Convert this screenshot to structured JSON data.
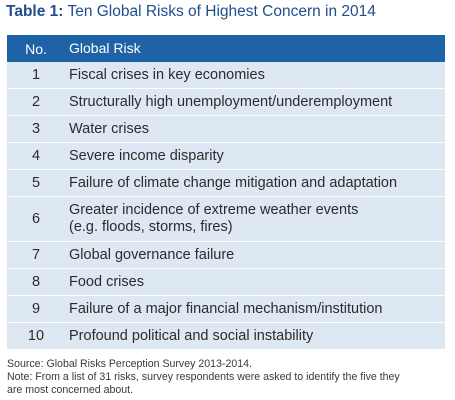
{
  "title": {
    "label": "Table 1:",
    "text": " Ten Global Risks of Highest Concern in 2014"
  },
  "table": {
    "headers": {
      "no": "No.",
      "risk": "Global Risk"
    },
    "rows": [
      {
        "no": "1",
        "risk": "Fiscal crises in key economies"
      },
      {
        "no": "2",
        "risk": "Structurally high unemployment/underemployment"
      },
      {
        "no": "3",
        "risk": "Water crises"
      },
      {
        "no": "4",
        "risk": "Severe income disparity"
      },
      {
        "no": "5",
        "risk": "Failure of climate change mitigation and adaptation"
      },
      {
        "no": "6",
        "risk_line1": "Greater incidence of extreme weather events",
        "risk_line2": "(e.g. floods, storms, fires)"
      },
      {
        "no": "7",
        "risk": "Global governance failure"
      },
      {
        "no": "8",
        "risk": "Food crises"
      },
      {
        "no": "9",
        "risk": "Failure of a major financial mechanism/institution"
      },
      {
        "no": "10",
        "risk": "Profound political and social instability"
      }
    ]
  },
  "footnote": {
    "source": "Source: Global Risks Perception Survey 2013-2014.",
    "note_line1": "Note: From a list of 31 risks, survey respondents were asked to identify the five they",
    "note_line2": "are most concerned about."
  },
  "colors": {
    "title": "#1f4e8c",
    "header_bg": "#1e63a6",
    "row_bg": "#dde8f3"
  }
}
